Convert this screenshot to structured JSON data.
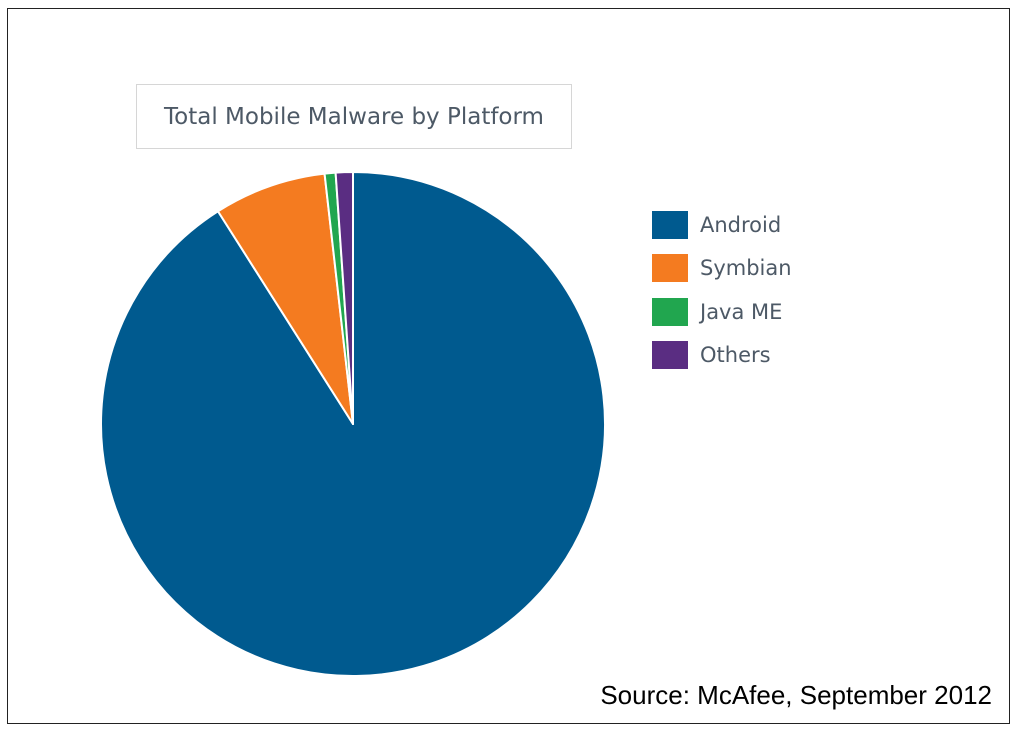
{
  "chart_data": {
    "type": "pie",
    "title": "Total Mobile Malware by Platform",
    "categories": [
      "Android",
      "Symbian",
      "Java ME",
      "Others"
    ],
    "values": [
      91.0,
      7.2,
      0.7,
      1.1
    ],
    "colors": [
      "#005a8f",
      "#f47b20",
      "#21a64f",
      "#5a2d82"
    ],
    "legend": "right",
    "source": "Source: McAfee, September 2012"
  }
}
